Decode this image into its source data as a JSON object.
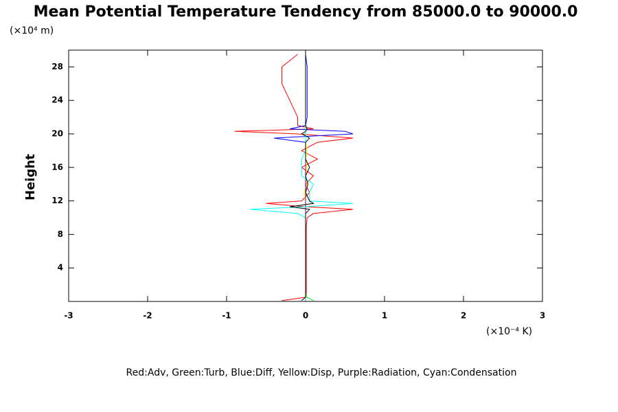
{
  "chart_data": {
    "type": "line",
    "title": "Mean Potential Temperature Tendency from 85000.0 to 90000.0",
    "ylabel": "Height",
    "y_unit": "(×10⁴ m)",
    "x_unit": "(×10⁻⁴ K)",
    "legend_text": "Red:Adv, Green:Turb, Blue:Diff, Yellow:Disp, Purple:Radiation, Cyan:Condensation",
    "xlim": [
      -3,
      3
    ],
    "xticks": [
      -3,
      -2,
      -1,
      0,
      1,
      2,
      3
    ],
    "ylim": [
      0,
      30
    ],
    "yticks": [
      4,
      8,
      12,
      16,
      20,
      24,
      28
    ],
    "y": [
      0.1,
      0.5,
      1,
      2,
      4,
      6,
      8,
      9,
      10,
      10.5,
      11,
      11.3,
      11.7,
      12,
      13,
      14,
      15,
      16,
      17,
      18,
      19,
      19.5,
      20,
      20.3,
      20.6,
      21,
      22,
      24,
      26,
      28,
      29.5
    ],
    "series": [
      {
        "color": "#ff0000",
        "values": [
          -0.3,
          0,
          0.01,
          0.01,
          0.01,
          0.01,
          0.01,
          0.01,
          0.02,
          0.1,
          0.6,
          0,
          -0.5,
          -0.05,
          0.05,
          0,
          0.1,
          -0.05,
          0.15,
          -0.05,
          0.15,
          0.6,
          -0.1,
          -0.9,
          0.1,
          -0.1,
          -0.1,
          -0.2,
          -0.3,
          -0.3,
          -0.1
        ]
      },
      {
        "color": "#00ff00",
        "values": [
          0.1,
          0.02,
          0,
          0,
          0,
          0,
          0,
          0,
          0,
          0,
          0,
          0,
          0,
          0,
          0,
          0,
          0,
          0,
          0,
          0,
          0,
          0,
          0,
          0,
          0,
          0,
          0,
          0,
          0,
          0,
          0
        ]
      },
      {
        "color": "#0000ff",
        "values": [
          0,
          0,
          0,
          0,
          0,
          0,
          0,
          0,
          0,
          0,
          0,
          0,
          0,
          0,
          0,
          0,
          0,
          0,
          0,
          0,
          0,
          -0.4,
          0.6,
          0.5,
          -0.2,
          0,
          0.02,
          0.02,
          0.02,
          0.02,
          0
        ]
      },
      {
        "color": "#ffff00",
        "values": [
          0,
          0,
          0,
          0,
          0,
          0,
          0,
          0,
          0,
          0,
          0,
          0,
          0,
          0,
          -0.02,
          0.02,
          0,
          0.02,
          0,
          0.02,
          0,
          0,
          0,
          0,
          0,
          0,
          0,
          0,
          0,
          0,
          0
        ]
      },
      {
        "color": "#800080",
        "values": [
          0,
          0,
          0,
          0,
          0,
          0,
          0,
          0,
          0,
          0,
          0,
          0,
          0,
          0,
          0,
          0,
          0,
          0,
          0,
          0,
          0,
          0,
          0,
          0,
          0,
          0,
          0,
          0,
          0,
          0,
          0
        ]
      },
      {
        "color": "#00ffff",
        "values": [
          0,
          0,
          0,
          0,
          0,
          0,
          0,
          0,
          0,
          -0.1,
          -0.7,
          0,
          0.6,
          0.05,
          0.05,
          0.1,
          -0.05,
          -0.05,
          -0.05,
          0,
          0,
          0,
          0,
          0,
          0,
          0,
          0,
          0,
          0,
          0,
          0
        ]
      },
      {
        "color": "#000000",
        "values": [
          -0.05,
          0,
          0,
          0,
          0,
          0,
          0,
          0,
          0,
          0,
          0.05,
          -0.2,
          0.1,
          0.05,
          0,
          0.03,
          0,
          0.05,
          0,
          0,
          0,
          0.05,
          -0.05,
          0,
          0.02,
          0,
          0,
          0,
          0,
          0,
          0
        ]
      }
    ]
  }
}
